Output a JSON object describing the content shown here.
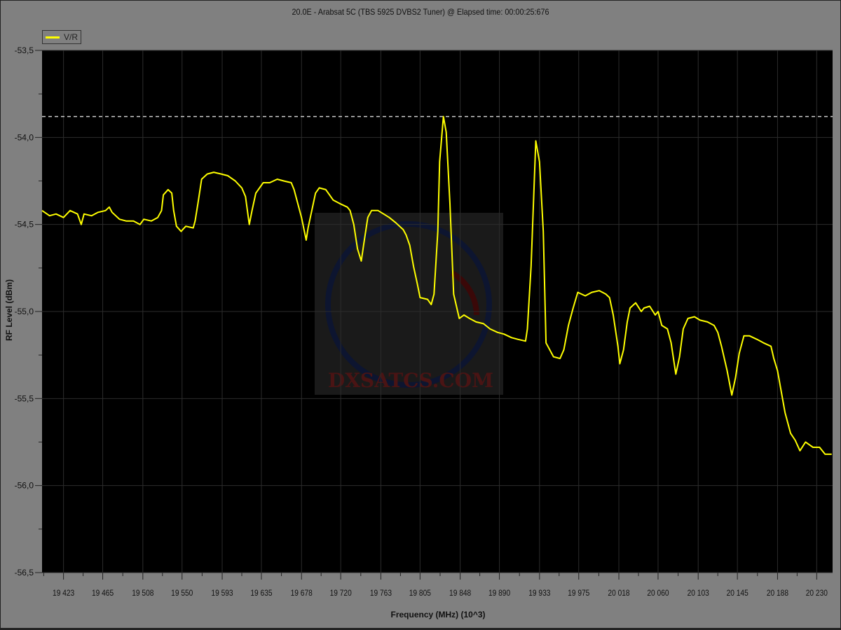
{
  "chart_data": {
    "type": "line",
    "title": "20.0E - Arabsat 5C (TBS 5925 DVBS2 Tuner) @ Elapsed time: 00:00:25:676",
    "xlabel": "Frequency (MHz) (10^3)",
    "ylabel": "RF Level (dBm)",
    "xlim": [
      19400,
      20247
    ],
    "ylim": [
      -56.5,
      -53.5
    ],
    "grid": true,
    "legend_position": "top-left",
    "background": "#000000",
    "x_ticks": [
      19423,
      19465,
      19508,
      19550,
      19593,
      19635,
      19678,
      19720,
      19763,
      19805,
      19848,
      19890,
      19933,
      19975,
      20018,
      20060,
      20103,
      20145,
      20188,
      20230
    ],
    "x_tick_labels": [
      "19 423",
      "19 465",
      "19 508",
      "19 550",
      "19 593",
      "19 635",
      "19 678",
      "19 720",
      "19 763",
      "19 805",
      "19 848",
      "19 890",
      "19 933",
      "19 975",
      "20 018",
      "20 060",
      "20 103",
      "20 145",
      "20 188",
      "20 230"
    ],
    "y_ticks": [
      -53.5,
      -54.0,
      -54.5,
      -55.0,
      -55.5,
      -56.0,
      -56.5
    ],
    "y_tick_labels": [
      "-53,5",
      "-54,0",
      "-54,5",
      "-55,0",
      "-55,5",
      "-56,0",
      "-56,5"
    ],
    "reference_line": {
      "y": -53.88,
      "style": "dashed",
      "color": "#d0d0d0"
    },
    "series": [
      {
        "name": "V/R",
        "color": "#ffff00",
        "x": [
          19400,
          19408,
          19415,
          19423,
          19430,
          19438,
          19442,
          19445,
          19453,
          19460,
          19468,
          19472,
          19475,
          19483,
          19490,
          19498,
          19505,
          19509,
          19517,
          19524,
          19528,
          19530,
          19535,
          19539,
          19541,
          19544,
          19549,
          19554,
          19562,
          19564,
          19567,
          19571,
          19577,
          19584,
          19592,
          19599,
          19607,
          19614,
          19618,
          19622,
          19625,
          19629,
          19637,
          19644,
          19652,
          19659,
          19667,
          19670,
          19674,
          19678,
          19683,
          19685,
          19689,
          19693,
          19697,
          19704,
          19712,
          19719,
          19727,
          19730,
          19734,
          19738,
          19742,
          19745,
          19749,
          19753,
          19760,
          19766,
          19772,
          19779,
          19787,
          19790,
          19794,
          19798,
          19802,
          19805,
          19813,
          19817,
          19820,
          19824,
          19826,
          19830,
          19833,
          19837,
          19841,
          19847,
          19852,
          19858,
          19865,
          19873,
          19880,
          19888,
          19895,
          19903,
          19910,
          19918,
          19920,
          19924,
          19929,
          19933,
          19937,
          19940,
          19948,
          19955,
          19959,
          19964,
          19969,
          19974,
          19982,
          19989,
          19997,
          20004,
          20008,
          20012,
          20017,
          20019,
          20023,
          20027,
          20030,
          20036,
          20042,
          20045,
          20051,
          20057,
          20060,
          20064,
          20070,
          20074,
          20079,
          20083,
          20087,
          20092,
          20099,
          20105,
          20113,
          20120,
          20124,
          20128,
          20134,
          20139,
          20143,
          20147,
          20152,
          20158,
          20166,
          20173,
          20181,
          20184,
          20188,
          20196,
          20202,
          20207,
          20212,
          20218,
          20226,
          20233,
          20239,
          20246
        ],
        "y": [
          -54.42,
          -54.45,
          -54.44,
          -54.46,
          -54.42,
          -54.44,
          -54.5,
          -54.44,
          -54.45,
          -54.43,
          -54.42,
          -54.4,
          -54.43,
          -54.47,
          -54.48,
          -54.48,
          -54.5,
          -54.47,
          -54.48,
          -54.46,
          -54.42,
          -54.33,
          -54.3,
          -54.32,
          -54.42,
          -54.51,
          -54.54,
          -54.51,
          -54.52,
          -54.48,
          -54.38,
          -54.24,
          -54.21,
          -54.2,
          -54.21,
          -54.22,
          -54.25,
          -54.29,
          -54.34,
          -54.5,
          -54.42,
          -54.32,
          -54.26,
          -54.26,
          -54.24,
          -54.25,
          -54.26,
          -54.3,
          -54.38,
          -54.46,
          -54.59,
          -54.52,
          -54.42,
          -54.32,
          -54.29,
          -54.3,
          -54.36,
          -54.38,
          -54.4,
          -54.42,
          -54.5,
          -54.64,
          -54.71,
          -54.6,
          -54.46,
          -54.42,
          -54.42,
          -54.44,
          -54.46,
          -54.49,
          -54.53,
          -54.56,
          -54.62,
          -54.74,
          -54.84,
          -54.92,
          -54.93,
          -54.96,
          -54.9,
          -54.54,
          -54.14,
          -53.88,
          -53.97,
          -54.38,
          -54.9,
          -55.04,
          -55.02,
          -55.04,
          -55.06,
          -55.07,
          -55.1,
          -55.12,
          -55.13,
          -55.15,
          -55.16,
          -55.17,
          -55.1,
          -54.74,
          -54.02,
          -54.14,
          -54.54,
          -55.18,
          -55.26,
          -55.27,
          -55.22,
          -55.08,
          -54.98,
          -54.89,
          -54.91,
          -54.89,
          -54.88,
          -54.9,
          -54.92,
          -55.02,
          -55.2,
          -55.3,
          -55.22,
          -55.06,
          -54.98,
          -54.95,
          -55.0,
          -54.98,
          -54.97,
          -55.02,
          -55.0,
          -55.08,
          -55.1,
          -55.18,
          -55.36,
          -55.26,
          -55.1,
          -55.04,
          -55.03,
          -55.05,
          -55.06,
          -55.08,
          -55.12,
          -55.2,
          -55.34,
          -55.48,
          -55.38,
          -55.24,
          -55.14,
          -55.14,
          -55.16,
          -55.18,
          -55.2,
          -55.27,
          -55.34,
          -55.58,
          -55.7,
          -55.74,
          -55.8,
          -55.75,
          -55.78,
          -55.78,
          -55.82,
          -55.82
        ]
      }
    ]
  },
  "watermark": {
    "text": "DXSATCS.COM"
  }
}
